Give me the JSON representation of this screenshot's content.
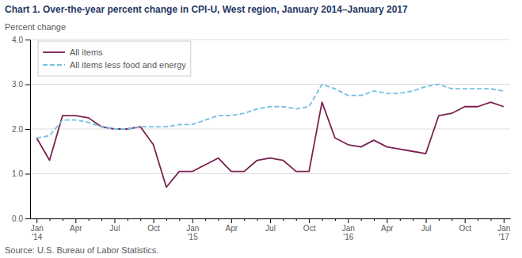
{
  "chart_data": {
    "type": "line",
    "title": "Chart 1. Over-the-year percent change in CPI-U, West region, January 2014–January 2017",
    "ylabel": "Percent change",
    "annotations": [
      "Source: U.S. Bureau of Labor Statistics."
    ],
    "categories": [
      "Jan\n'14",
      null,
      null,
      "Apr",
      null,
      null,
      "Jul",
      null,
      null,
      "Oct",
      null,
      null,
      "Jan\n'15",
      null,
      null,
      "Apr",
      null,
      null,
      "Jul",
      null,
      null,
      "Oct",
      null,
      null,
      "Jan\n'16",
      null,
      null,
      "Apr",
      null,
      null,
      "Jul",
      null,
      null,
      "Oct",
      null,
      null,
      "Jan\n'17"
    ],
    "series": [
      {
        "name": "All items",
        "color": "#7B2150",
        "line_style": "solid",
        "values": [
          1.8,
          1.3,
          2.3,
          2.3,
          2.25,
          2.05,
          2.0,
          2.0,
          2.05,
          1.65,
          0.7,
          1.05,
          1.05,
          1.2,
          1.35,
          1.05,
          1.05,
          1.3,
          1.35,
          1.3,
          1.05,
          1.05,
          2.6,
          1.8,
          1.65,
          1.6,
          1.75,
          1.6,
          1.55,
          1.5,
          1.45,
          2.3,
          2.35,
          2.5,
          2.5,
          2.6,
          2.5
        ]
      },
      {
        "name": "All items less food and energy",
        "color": "#74C0E0",
        "line_style": "dashed",
        "values": [
          1.8,
          1.85,
          2.2,
          2.2,
          2.15,
          2.05,
          2.0,
          2.0,
          2.05,
          2.05,
          2.05,
          2.1,
          2.1,
          2.2,
          2.3,
          2.3,
          2.35,
          2.45,
          2.5,
          2.5,
          2.45,
          2.5,
          3.0,
          2.9,
          2.75,
          2.75,
          2.85,
          2.8,
          2.8,
          2.85,
          2.95,
          3.0,
          2.9,
          2.9,
          2.9,
          2.9,
          2.85
        ]
      }
    ],
    "ylim": [
      0.0,
      4.0
    ],
    "yticks": [
      {
        "value": 0,
        "label": "0.0"
      },
      {
        "value": 1,
        "label": "1.0"
      },
      {
        "value": 2,
        "label": "2.0"
      },
      {
        "value": 3,
        "label": "3.0"
      },
      {
        "value": 4,
        "label": "4.0"
      }
    ],
    "grid": true,
    "legend": "upper left"
  }
}
